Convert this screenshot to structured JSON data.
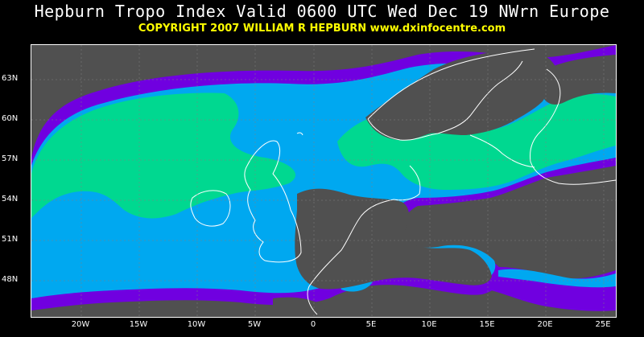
{
  "title": "Hepburn Tropo Index Valid 0600 UTC Wed Dec 19 NWrn Europe",
  "copyright": "COPYRIGHT 2007   WILLIAM R HEPBURN   www.dxinfocentre.com",
  "colors": {
    "background": "#000000",
    "land_low": "#505050",
    "index_purple": "#7000e0",
    "index_blue": "#00a8f0",
    "index_green": "#00d890",
    "coastline": "#ffffff",
    "title": "#ffffff",
    "subtitle": "#ffff00"
  },
  "latitude_labels": [
    "63N",
    "60N",
    "57N",
    "54N",
    "51N",
    "48N"
  ],
  "longitude_labels": [
    "20W",
    "15W",
    "10W",
    "5W",
    "0",
    "5E",
    "10E",
    "15E",
    "20E",
    "25E"
  ]
}
